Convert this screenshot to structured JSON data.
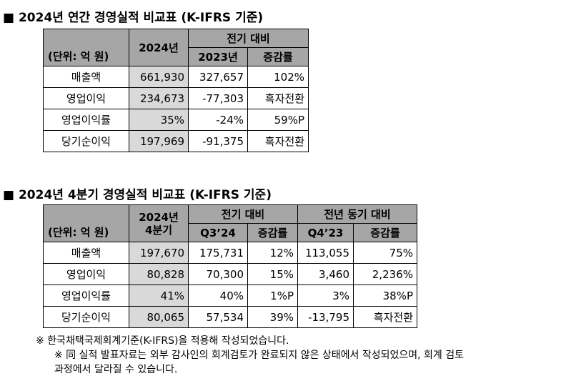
{
  "section1": {
    "title": "■ 2024년 연간 경영실적 비교표 (K-IFRS 기준)",
    "header": {
      "unit": "(단위: 억 원)",
      "current": "2024년",
      "compare_group": "전기 대비",
      "prev": "2023년",
      "change": "증감률"
    },
    "rows": [
      {
        "label": "매출액",
        "current": "661,930",
        "prev": "327,657",
        "change": "102%"
      },
      {
        "label": "영업이익",
        "current": "234,673",
        "prev": "-77,303",
        "change": "흑자전환"
      },
      {
        "label": "영업이익률",
        "current": "35%",
        "prev": "-24%",
        "change": "59%P"
      },
      {
        "label": "당기순이익",
        "current": "197,969",
        "prev": "-91,375",
        "change": "흑자전환"
      }
    ]
  },
  "section2": {
    "title": "■ 2024년 4분기 경영실적 비교표 (K-IFRS 기준)",
    "header": {
      "unit": "(단위: 억 원)",
      "current_line1": "2024년",
      "current_line2": "4분기",
      "qoq_group": "전기 대비",
      "qoq_period": "Q3’24",
      "qoq_change": "증감률",
      "yoy_group": "전년 동기 대비",
      "yoy_period": "Q4’23",
      "yoy_change": "증감률"
    },
    "rows": [
      {
        "label": "매출액",
        "current": "197,670",
        "q3": "175,731",
        "qoq": "12%",
        "q4prev": "113,055",
        "yoy": "75%"
      },
      {
        "label": "영업이익",
        "current": "80,828",
        "q3": "70,300",
        "qoq": "15%",
        "q4prev": "3,460",
        "yoy": "2,236%"
      },
      {
        "label": "영업이익률",
        "current": "41%",
        "q3": "40%",
        "qoq": "1%P",
        "q4prev": "3%",
        "yoy": "38%P"
      },
      {
        "label": "당기순이익",
        "current": "80,065",
        "q3": "57,534",
        "qoq": "39%",
        "q4prev": "-13,795",
        "yoy": "흑자전환"
      }
    ]
  },
  "notes": {
    "line1": "※ 한국채택국제회계기준(K-IFRS)을 적용해 작성되었습니다.",
    "line2": "※ 同 실적 발표자료는 외부 감사인의 회계검토가 완료되지 않은 상태에서 작성되었으며, 회계 검토",
    "line3": "과정에서 달라질 수 있습니다."
  }
}
